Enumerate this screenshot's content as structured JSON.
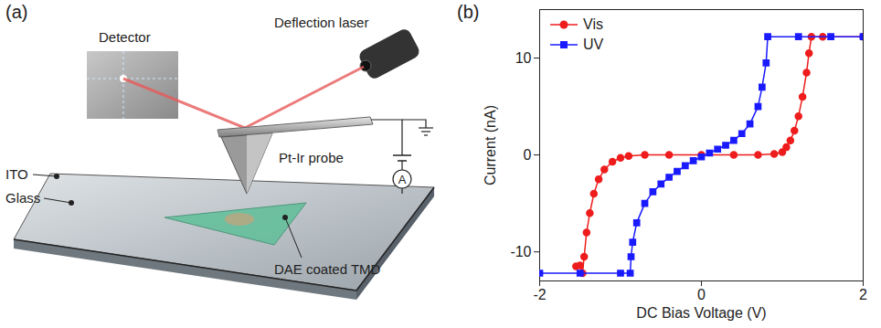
{
  "diagram": {
    "panel": "(a)",
    "labels": {
      "detector": "Detector",
      "laser": "Deflection laser",
      "probe": "Pt-Ir probe",
      "ammeter": "A",
      "ito": "ITO",
      "glass": "Glass",
      "sample": "DAE coated TMD"
    }
  },
  "chart_data": {
    "panel": "(b)",
    "type": "line",
    "x_label": "DC Bias Voltage (V)",
    "y_label": "Current (nA)",
    "xlim": [
      -2,
      2
    ],
    "ylim": [
      -13,
      15
    ],
    "xticks": [
      -2,
      0,
      2
    ],
    "yticks": [
      -10,
      0,
      10
    ],
    "legend": "upper left",
    "series": [
      {
        "name": "Vis",
        "color": "#ee1c1c",
        "marker": "circle",
        "x": [
          -1.55,
          -1.5,
          -1.47,
          -1.45,
          -1.42,
          -1.38,
          -1.33,
          -1.27,
          -1.2,
          -1.1,
          -1.0,
          -0.9,
          -0.7,
          -0.4,
          0,
          0.4,
          0.7,
          0.9,
          1.0,
          1.05,
          1.1,
          1.15,
          1.2,
          1.25,
          1.3,
          1.33,
          1.36,
          1.5,
          2
        ],
        "values": [
          -11.5,
          -11.4,
          -12.2,
          -10.5,
          -8,
          -6,
          -4,
          -2.5,
          -1.5,
          -0.7,
          -0.3,
          -0.1,
          0,
          0,
          0,
          0,
          0.02,
          0.1,
          0.3,
          0.8,
          1.5,
          2.5,
          4,
          6,
          8.5,
          10.5,
          12.2,
          12.2,
          12.2
        ]
      },
      {
        "name": "UV",
        "color": "#1a1aff",
        "marker": "square",
        "x": [
          -2,
          -1.5,
          -1.0,
          -0.88,
          -0.87,
          -0.85,
          -0.8,
          -0.7,
          -0.6,
          -0.5,
          -0.4,
          -0.3,
          -0.2,
          -0.1,
          0,
          0.1,
          0.2,
          0.3,
          0.4,
          0.5,
          0.6,
          0.7,
          0.75,
          0.8,
          0.82,
          1.2,
          1.6,
          2
        ],
        "values": [
          -12.2,
          -12.2,
          -12.2,
          -12.2,
          -10.5,
          -9,
          -7,
          -5,
          -3.8,
          -3,
          -2.3,
          -1.7,
          -1.1,
          -0.6,
          -0.2,
          0.2,
          0.6,
          1.0,
          1.5,
          2.2,
          3.2,
          5,
          7,
          9.5,
          12.2,
          12.2,
          12.2,
          12.2
        ]
      }
    ]
  }
}
